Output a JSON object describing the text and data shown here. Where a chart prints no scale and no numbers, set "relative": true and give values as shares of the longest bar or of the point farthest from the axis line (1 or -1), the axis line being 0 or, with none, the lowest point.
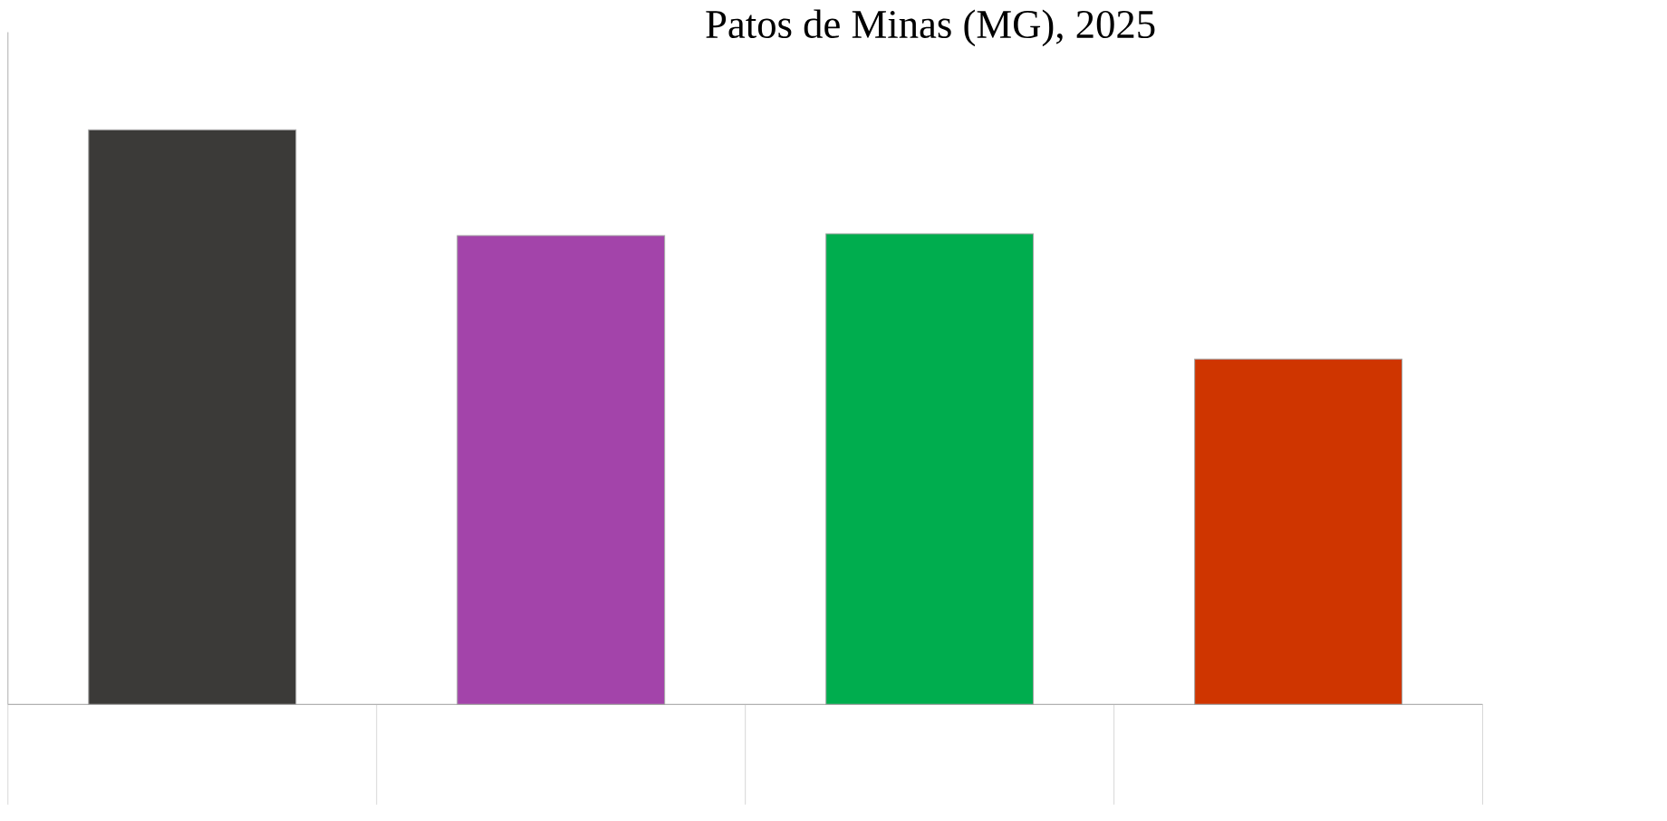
{
  "chart_data": {
    "type": "bar",
    "title": "Patos de Minas (MG), 2025",
    "categories": [
      null,
      null,
      null,
      null
    ],
    "relative": true,
    "values": [
      1,
      0.816,
      0.819,
      0.601
    ],
    "colors": [
      "#3b3a38",
      "#a344aa",
      "#00ad4e",
      "#cf3500"
    ]
  }
}
